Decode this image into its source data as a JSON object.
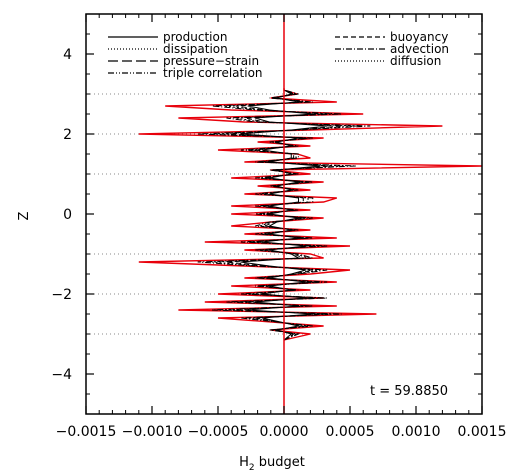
{
  "chart_data": {
    "type": "line",
    "title": "",
    "xlabel": "H",
    "xlabel_subscript": "2",
    "xlabel_suffix": " budget",
    "ylabel": "Z",
    "xlim": [
      -0.0015,
      0.0015
    ],
    "ylim": [
      -5,
      5
    ],
    "xticks": [
      -0.0015,
      -0.001,
      -0.0005,
      0.0,
      0.0005,
      0.001,
      0.0015
    ],
    "xtick_labels": [
      "−0.0015",
      "−0.0010",
      "−0.0005",
      "0.0000",
      "0.0005",
      "0.0010",
      "0.0015"
    ],
    "yticks": [
      -4,
      -2,
      0,
      2,
      4
    ],
    "ytick_labels": [
      "−4",
      "−2",
      "0",
      "2",
      "4"
    ],
    "grid": "dotted horizontal lines at z = -3, -2, -1, 1, 2, 3",
    "gridlines_z": [
      -3,
      -2,
      -1,
      1,
      2,
      3
    ],
    "annotation": "t = 59.8850",
    "legend": [
      {
        "label": "production",
        "dash": "solid"
      },
      {
        "label": "dissipation",
        "dash": "dotted"
      },
      {
        "label": "pressure−strain",
        "dash": "long-dash"
      },
      {
        "label": "triple correlation",
        "dash": "dash-dot-dot"
      },
      {
        "label": "buoyancy",
        "dash": "dashed"
      },
      {
        "label": "advection",
        "dash": "dash-dot"
      },
      {
        "label": "diffusion",
        "dash": "dotted"
      }
    ],
    "colors": {
      "red_series": "#e8000b",
      "black_series": "#000000"
    },
    "series": [
      {
        "name": "",
        "color": "#e8000b",
        "z": [
          -3.15,
          -3.0,
          -2.9,
          -2.8,
          -2.6,
          -2.5,
          -2.4,
          -2.3,
          -2.2,
          -2.1,
          -2.0,
          -1.9,
          -1.8,
          -1.7,
          -1.6,
          -1.5,
          -1.4,
          -1.3,
          -1.2,
          -1.1,
          -1.0,
          -0.9,
          -0.8,
          -0.7,
          -0.6,
          -0.5,
          -0.4,
          -0.3,
          -0.2,
          -0.1,
          0.0,
          0.1,
          0.2,
          0.3,
          0.4,
          0.5,
          0.6,
          0.7,
          0.8,
          0.9,
          1.0,
          1.1,
          1.2,
          1.3,
          1.4,
          1.5,
          1.6,
          1.7,
          1.8,
          1.9,
          2.0,
          2.1,
          2.2,
          2.3,
          2.4,
          2.5,
          2.6,
          2.7,
          2.8,
          2.9,
          3.0,
          3.1,
          3.15
        ],
        "values": [
          0.0,
          0.0002,
          -0.0001,
          0.0003,
          -0.0005,
          0.0007,
          -0.0008,
          0.0004,
          -0.0006,
          0.0003,
          -0.0005,
          0.0002,
          -0.0004,
          0.0004,
          -0.0003,
          0.0002,
          0.0005,
          -0.0003,
          -0.0011,
          0.0003,
          0.0002,
          -0.0003,
          0.0005,
          -0.0006,
          0.0004,
          -0.0003,
          0.0002,
          -0.0004,
          -0.0001,
          0.0003,
          -0.0004,
          0.0002,
          -0.0004,
          0.0003,
          0.0004,
          -0.0003,
          0.0002,
          -0.0002,
          0.0003,
          -0.0004,
          0.0002,
          -0.0001,
          0.0015,
          -0.0003,
          0.0002,
          0.0001,
          -0.0005,
          0.0002,
          -0.0002,
          0.0003,
          -0.0011,
          0.0002,
          0.0012,
          -0.0003,
          -0.0008,
          0.0006,
          -0.0004,
          -0.0009,
          0.0004,
          -0.0001,
          0.0001,
          0.0,
          0.0
        ]
      },
      {
        "name": "",
        "color": "#000000",
        "z": [
          -3.15,
          -3.0,
          -2.9,
          -2.8,
          -2.6,
          -2.5,
          -2.4,
          -2.3,
          -2.2,
          -2.1,
          -2.0,
          -1.9,
          -1.8,
          -1.7,
          -1.6,
          -1.5,
          -1.4,
          -1.3,
          -1.2,
          -1.1,
          -1.0,
          -0.9,
          -0.8,
          -0.7,
          -0.6,
          -0.5,
          -0.4,
          -0.3,
          -0.2,
          -0.1,
          0.0,
          0.1,
          0.2,
          0.3,
          0.4,
          0.5,
          0.6,
          0.7,
          0.8,
          0.9,
          1.0,
          1.1,
          1.2,
          1.3,
          1.4,
          1.5,
          1.6,
          1.7,
          1.8,
          1.9,
          2.0,
          2.1,
          2.2,
          2.3,
          2.4,
          2.5,
          2.6,
          2.7,
          2.8,
          2.9,
          3.0,
          3.1,
          3.15
        ],
        "values": [
          0.0,
          0.0001,
          -0.0001,
          0.0002,
          -0.0003,
          0.0004,
          -0.0005,
          0.0002,
          -0.0004,
          0.0003,
          -0.0003,
          0.0001,
          -0.0002,
          0.0003,
          -0.0002,
          0.0001,
          0.0003,
          -0.0002,
          -0.0006,
          0.0002,
          0.0001,
          -0.0002,
          0.0003,
          -0.0003,
          0.0002,
          -0.0002,
          0.0001,
          -0.0002,
          -0.0001,
          0.0002,
          -0.0002,
          0.0001,
          -0.0002,
          0.0002,
          0.0002,
          -0.0002,
          0.0001,
          -0.0001,
          0.0002,
          -0.0002,
          0.0001,
          -0.0001,
          0.0005,
          -0.0002,
          0.0001,
          0.0001,
          -0.0003,
          0.0001,
          -0.0001,
          0.0002,
          -0.0006,
          0.0001,
          0.0006,
          -0.0002,
          -0.0004,
          0.0004,
          -0.0002,
          -0.0005,
          0.0002,
          -0.0001,
          0.0001,
          0.0,
          0.0
        ]
      }
    ]
  }
}
